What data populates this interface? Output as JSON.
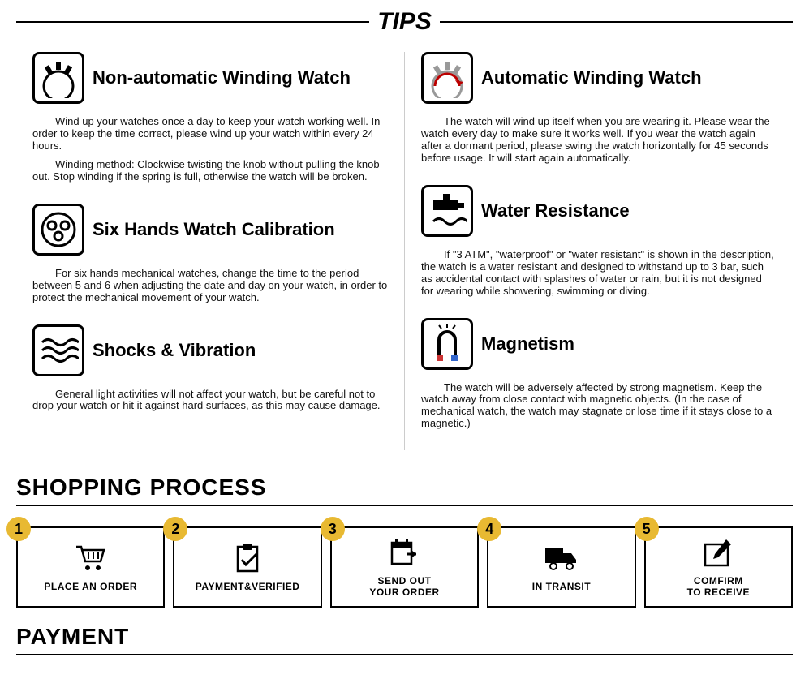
{
  "header": {
    "title": "TIPS"
  },
  "tips": {
    "left": [
      {
        "title": "Non-automatic Winding Watch",
        "icon": "gear",
        "paragraphs": [
          "Wind up your watches once a day to keep your watch working well. In order to keep the time correct, please wind up your watch within every 24 hours.",
          "Winding method: Clockwise twisting the knob without pulling the knob out. Stop winding if the spring is full, otherwise the watch will be broken."
        ]
      },
      {
        "title": "Six Hands Watch Calibration",
        "icon": "watch-dials",
        "paragraphs": [
          "For six hands mechanical watches, change the time to the period between 5 and 6 when adjusting the date and day on your watch, in order to protect the mechanical movement of your watch."
        ]
      },
      {
        "title": "Shocks & Vibration",
        "icon": "waves",
        "paragraphs": [
          "General light activities will not affect your watch, but be careful not to drop your watch or hit it against hard surfaces, as this may cause damage."
        ]
      }
    ],
    "right": [
      {
        "title": "Automatic Winding Watch",
        "icon": "gear-arrow",
        "paragraphs": [
          "The watch will wind up itself when you are wearing it. Please wear the watch every day to make sure it works well. If you wear the watch again after a dormant period, please swing the watch horizontally for 45 seconds before usage. It will start again automatically."
        ]
      },
      {
        "title": "Water Resistance",
        "icon": "tap",
        "paragraphs": [
          "If \"3 ATM\", \"waterproof\" or \"water resistant\" is shown in the description, the watch is a water resistant and designed to withstand up to 3 bar, such as accidental contact with splashes of water or rain, but it is not designed for wearing while showering, swimming or diving."
        ]
      },
      {
        "title": "Magnetism",
        "icon": "magnet",
        "paragraphs": [
          "The watch will be adversely affected by strong magnetism. Keep the watch away from close contact with magnetic objects. (In the case of mechanical watch, the watch may stagnate or lose time if it stays close to a magnetic.)"
        ]
      }
    ]
  },
  "shopping": {
    "title": "SHOPPING PROCESS",
    "step_bg": "#e8b932",
    "steps": [
      {
        "num": "1",
        "label": "PLACE AN ORDER",
        "icon": "cart"
      },
      {
        "num": "2",
        "label": "PAYMENT&VERIFIED",
        "icon": "clipboard"
      },
      {
        "num": "3",
        "label": "SEND OUT\nYOUR ORDER",
        "icon": "calendar-out"
      },
      {
        "num": "4",
        "label": "IN TRANSIT",
        "icon": "truck"
      },
      {
        "num": "5",
        "label": "COMFIRM\nTO RECEIVE",
        "icon": "pencil-box"
      }
    ]
  },
  "payment": {
    "title": "PAYMENT"
  }
}
